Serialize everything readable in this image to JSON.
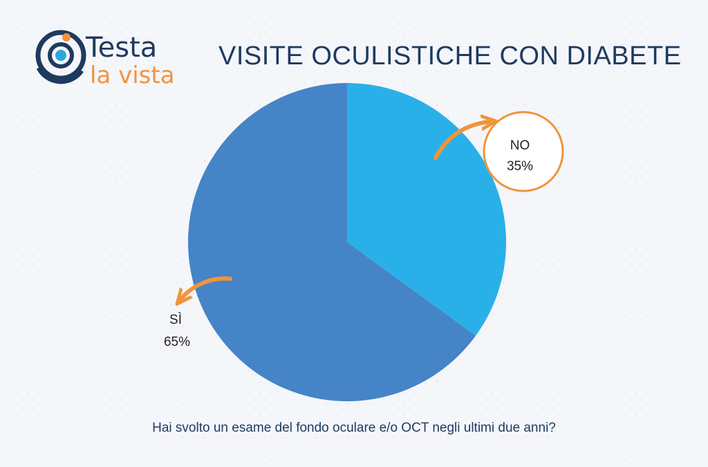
{
  "brand": {
    "logo_text_line1": "Testa",
    "logo_text_line2": "la vista",
    "colors": {
      "navy": "#1f3a5f",
      "orange": "#f0943a",
      "sky": "#2aa8e0"
    }
  },
  "title": "VISITE OCULISTICHE CON DIABETE",
  "question": "Hai svolto un esame del fondo oculare e/o OCT negli ultimi due anni?",
  "chart_data": {
    "type": "pie",
    "title": "VISITE OCULISTICHE CON DIABETE",
    "slices": [
      {
        "label": "NO",
        "value": 35,
        "value_label": "35%",
        "color": "#2ab0e8"
      },
      {
        "label": "SÌ",
        "value": 65,
        "value_label": "65%",
        "color": "#4584c6"
      }
    ],
    "start": "12 o'clock",
    "direction": "clockwise",
    "callout_color": "#f0943a"
  }
}
